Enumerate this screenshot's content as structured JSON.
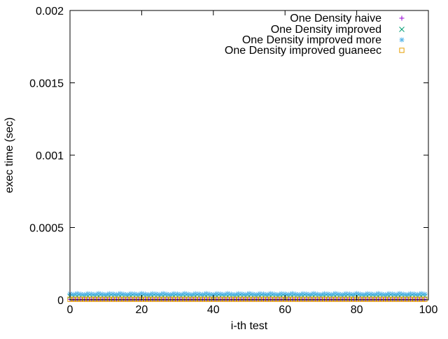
{
  "chart_data": {
    "type": "scatter",
    "title": "",
    "xlabel": "i-th test",
    "ylabel": "exec time (sec)",
    "xlim": [
      0,
      100
    ],
    "ylim": [
      0,
      0.002
    ],
    "x_ticks": [
      0,
      20,
      40,
      60,
      80,
      100
    ],
    "x_tick_labels": [
      "0",
      "20",
      "40",
      "60",
      "80",
      "100"
    ],
    "y_ticks": [
      0,
      0.0005,
      0.001,
      0.0015,
      0.002
    ],
    "y_tick_labels": [
      "0",
      "0.0005",
      "0.001",
      "0.0015",
      "0.002"
    ],
    "grid": false,
    "legend_position": "top-right",
    "series": [
      {
        "name": "One Density naive",
        "marker": "plus",
        "color": "#9400d3",
        "x": [
          0,
          1,
          2,
          3,
          4,
          5,
          6,
          7,
          8,
          9,
          10,
          11,
          12,
          13,
          14,
          15,
          16,
          17,
          18,
          19,
          20,
          21,
          22,
          23,
          24,
          25,
          26,
          27,
          28,
          29,
          30,
          31,
          32,
          33,
          34,
          35,
          36,
          37,
          38,
          39,
          40,
          41,
          42,
          43,
          44,
          45,
          46,
          47,
          48,
          49,
          50,
          51,
          52,
          53,
          54,
          55,
          56,
          57,
          58,
          59,
          60,
          61,
          62,
          63,
          64,
          65,
          66,
          67,
          68,
          69,
          70,
          71,
          72,
          73,
          74,
          75,
          76,
          77,
          78,
          79,
          80,
          81,
          82,
          83,
          84,
          85,
          86,
          87,
          88,
          89,
          90,
          91,
          92,
          93,
          94,
          95,
          96,
          97,
          98,
          99
        ],
        "y": [
          3e-06,
          3e-06,
          3e-06,
          3e-06,
          3e-06,
          3e-06,
          3e-06,
          3e-06,
          3e-06,
          3e-06,
          3e-06,
          3e-06,
          3e-06,
          3e-06,
          3e-06,
          3e-06,
          3e-06,
          3e-06,
          3e-06,
          3e-06,
          3e-06,
          3e-06,
          3e-06,
          3e-06,
          3e-06,
          3e-06,
          3e-06,
          3e-06,
          3e-06,
          3e-06,
          3e-06,
          3e-06,
          3e-06,
          3e-06,
          3e-06,
          3e-06,
          3e-06,
          3e-06,
          3e-06,
          3e-06,
          3e-06,
          3e-06,
          3e-06,
          3e-06,
          3e-06,
          3e-06,
          3e-06,
          3e-06,
          3e-06,
          3e-06,
          3e-06,
          3e-06,
          3e-06,
          3e-06,
          3e-06,
          3e-06,
          3e-06,
          3e-06,
          3e-06,
          3e-06,
          3e-06,
          3e-06,
          3e-06,
          3e-06,
          3e-06,
          3e-06,
          3e-06,
          3e-06,
          3e-06,
          3e-06,
          3e-06,
          3e-06,
          3e-06,
          3e-06,
          3e-06,
          3e-06,
          3e-06,
          3e-06,
          3e-06,
          3e-06,
          3e-06,
          3e-06,
          3e-06,
          3e-06,
          3e-06,
          3e-06,
          3e-06,
          3e-06,
          3e-06,
          3e-06,
          3e-06,
          3e-06,
          3e-06,
          3e-06,
          3e-06,
          3e-06,
          3e-06,
          3e-06,
          3e-06,
          3e-06
        ]
      },
      {
        "name": "One Density improved",
        "marker": "x",
        "color": "#009e73",
        "x": [
          0,
          1,
          2,
          3,
          4,
          5,
          6,
          7,
          8,
          9,
          10,
          11,
          12,
          13,
          14,
          15,
          16,
          17,
          18,
          19,
          20,
          21,
          22,
          23,
          24,
          25,
          26,
          27,
          28,
          29,
          30,
          31,
          32,
          33,
          34,
          35,
          36,
          37,
          38,
          39,
          40,
          41,
          42,
          43,
          44,
          45,
          46,
          47,
          48,
          49,
          50,
          51,
          52,
          53,
          54,
          55,
          56,
          57,
          58,
          59,
          60,
          61,
          62,
          63,
          64,
          65,
          66,
          67,
          68,
          69,
          70,
          71,
          72,
          73,
          74,
          75,
          76,
          77,
          78,
          79,
          80,
          81,
          82,
          83,
          84,
          85,
          86,
          87,
          88,
          89,
          90,
          91,
          92,
          93,
          94,
          95,
          96,
          97,
          98,
          99
        ],
        "y": [
          2.5e-05,
          2.4e-05,
          2.6e-05,
          2.5e-05,
          2.4e-05,
          2.6e-05,
          2.5e-05,
          2.4e-05,
          2.6e-05,
          2.5e-05,
          2.4e-05,
          2.6e-05,
          2.5e-05,
          2.4e-05,
          2.6e-05,
          2.5e-05,
          2.4e-05,
          2.6e-05,
          2.5e-05,
          2.4e-05,
          2.6e-05,
          2.5e-05,
          2.4e-05,
          2.6e-05,
          2.5e-05,
          2.4e-05,
          2.6e-05,
          2.5e-05,
          2.4e-05,
          2.6e-05,
          2.5e-05,
          2.4e-05,
          2.6e-05,
          2.5e-05,
          2.4e-05,
          2.6e-05,
          2.5e-05,
          2.4e-05,
          2.6e-05,
          2.5e-05,
          2.4e-05,
          2.6e-05,
          2.5e-05,
          2.4e-05,
          2.6e-05,
          2.5e-05,
          2.4e-05,
          2.6e-05,
          2.5e-05,
          2.4e-05,
          2.6e-05,
          2.5e-05,
          2.4e-05,
          2.6e-05,
          2.5e-05,
          2.4e-05,
          2.6e-05,
          2.5e-05,
          2.4e-05,
          2.6e-05,
          2.5e-05,
          2.4e-05,
          2.6e-05,
          2.5e-05,
          2.4e-05,
          2.6e-05,
          2.5e-05,
          2.4e-05,
          2.6e-05,
          2.5e-05,
          2.4e-05,
          2.6e-05,
          2.5e-05,
          2.4e-05,
          2.6e-05,
          2.5e-05,
          2.4e-05,
          2.6e-05,
          2.5e-05,
          2.4e-05,
          2.6e-05,
          2.5e-05,
          2.4e-05,
          2.6e-05,
          2.5e-05,
          2.4e-05,
          2.6e-05,
          2.5e-05,
          2.4e-05,
          2.6e-05,
          2.5e-05,
          2.4e-05,
          2.6e-05,
          2.5e-05,
          2.4e-05,
          2.6e-05,
          2.5e-05,
          2.4e-05,
          2.6e-05,
          2.5e-05
        ]
      },
      {
        "name": "One Density improved more",
        "marker": "asterisk",
        "color": "#56b4e9",
        "x": [
          0,
          1,
          2,
          3,
          4,
          5,
          6,
          7,
          8,
          9,
          10,
          11,
          12,
          13,
          14,
          15,
          16,
          17,
          18,
          19,
          20,
          21,
          22,
          23,
          24,
          25,
          26,
          27,
          28,
          29,
          30,
          31,
          32,
          33,
          34,
          35,
          36,
          37,
          38,
          39,
          40,
          41,
          42,
          43,
          44,
          45,
          46,
          47,
          48,
          49,
          50,
          51,
          52,
          53,
          54,
          55,
          56,
          57,
          58,
          59,
          60,
          61,
          62,
          63,
          64,
          65,
          66,
          67,
          68,
          69,
          70,
          71,
          72,
          73,
          74,
          75,
          76,
          77,
          78,
          79,
          80,
          81,
          82,
          83,
          84,
          85,
          86,
          87,
          88,
          89,
          90,
          91,
          92,
          93,
          94,
          95,
          96,
          97,
          98,
          99
        ],
        "y": [
          4.2e-05,
          3.8e-05,
          4.4e-05,
          4e-05,
          3.7e-05,
          4.3e-05,
          4.1e-05,
          3.8e-05,
          4.4e-05,
          4e-05,
          3.7e-05,
          4.3e-05,
          4.1e-05,
          3.8e-05,
          4.4e-05,
          4e-05,
          3.7e-05,
          4.3e-05,
          4.1e-05,
          3.8e-05,
          4.4e-05,
          4e-05,
          3.7e-05,
          4.3e-05,
          4.1e-05,
          3.8e-05,
          4.4e-05,
          4e-05,
          3.7e-05,
          4.3e-05,
          4.1e-05,
          3.8e-05,
          4.4e-05,
          4e-05,
          3.7e-05,
          4.3e-05,
          4.1e-05,
          3.8e-05,
          4.4e-05,
          4e-05,
          3.7e-05,
          4.3e-05,
          4.1e-05,
          3.8e-05,
          4.4e-05,
          4e-05,
          3.7e-05,
          4.3e-05,
          4.1e-05,
          3.8e-05,
          4.4e-05,
          4e-05,
          3.7e-05,
          4.3e-05,
          4.1e-05,
          3.8e-05,
          4.4e-05,
          4e-05,
          3.7e-05,
          4.3e-05,
          4.1e-05,
          3.8e-05,
          4.4e-05,
          4e-05,
          3.7e-05,
          4.3e-05,
          4.1e-05,
          3.8e-05,
          4.4e-05,
          4e-05,
          3.7e-05,
          4.3e-05,
          4.1e-05,
          3.8e-05,
          4.4e-05,
          4e-05,
          3.7e-05,
          4.3e-05,
          4.1e-05,
          3.8e-05,
          4.4e-05,
          4e-05,
          3.7e-05,
          4.3e-05,
          4.1e-05,
          3.8e-05,
          4.4e-05,
          4e-05,
          3.7e-05,
          4.3e-05,
          4.1e-05,
          3.8e-05,
          4.4e-05,
          4e-05,
          3.7e-05,
          4.3e-05,
          4.1e-05,
          3.8e-05,
          4.4e-05,
          4e-05
        ]
      },
      {
        "name": "One Density improved guaneec",
        "marker": "square",
        "color": "#e69f00",
        "x": [
          0,
          1,
          2,
          3,
          4,
          5,
          6,
          7,
          8,
          9,
          10,
          11,
          12,
          13,
          14,
          15,
          16,
          17,
          18,
          19,
          20,
          21,
          22,
          23,
          24,
          25,
          26,
          27,
          28,
          29,
          30,
          31,
          32,
          33,
          34,
          35,
          36,
          37,
          38,
          39,
          40,
          41,
          42,
          43,
          44,
          45,
          46,
          47,
          48,
          49,
          50,
          51,
          52,
          53,
          54,
          55,
          56,
          57,
          58,
          59,
          60,
          61,
          62,
          63,
          64,
          65,
          66,
          67,
          68,
          69,
          70,
          71,
          72,
          73,
          74,
          75,
          76,
          77,
          78,
          79,
          80,
          81,
          82,
          83,
          84,
          85,
          86,
          87,
          88,
          89,
          90,
          91,
          92,
          93,
          94,
          95,
          96,
          97,
          98,
          99
        ],
        "y": [
          4e-06,
          4e-06,
          4e-06,
          4e-06,
          4e-06,
          4e-06,
          4e-06,
          4e-06,
          4e-06,
          4e-06,
          4e-06,
          4e-06,
          4e-06,
          4e-06,
          4e-06,
          4e-06,
          4e-06,
          4e-06,
          4e-06,
          4e-06,
          4e-06,
          4e-06,
          4e-06,
          4e-06,
          4e-06,
          4e-06,
          4e-06,
          4e-06,
          4e-06,
          4e-06,
          4e-06,
          4e-06,
          4e-06,
          4e-06,
          4e-06,
          4e-06,
          4e-06,
          4e-06,
          4e-06,
          4e-06,
          4e-06,
          4e-06,
          4e-06,
          4e-06,
          4e-06,
          4e-06,
          4e-06,
          4e-06,
          4e-06,
          4e-06,
          4e-06,
          4e-06,
          4e-06,
          4e-06,
          4e-06,
          4e-06,
          4e-06,
          4e-06,
          4e-06,
          4e-06,
          4e-06,
          4e-06,
          4e-06,
          4e-06,
          4e-06,
          4e-06,
          4e-06,
          4e-06,
          4e-06,
          4e-06,
          4e-06,
          4e-06,
          4e-06,
          4e-06,
          4e-06,
          4e-06,
          4e-06,
          4e-06,
          4e-06,
          4e-06,
          4e-06,
          4e-06,
          4e-06,
          4e-06,
          4e-06,
          4e-06,
          4e-06,
          4e-06,
          4e-06,
          4e-06,
          4e-06,
          4e-06,
          4e-06,
          4e-06,
          4e-06,
          4e-06,
          4e-06,
          4e-06,
          4e-06,
          4e-06
        ]
      }
    ]
  }
}
